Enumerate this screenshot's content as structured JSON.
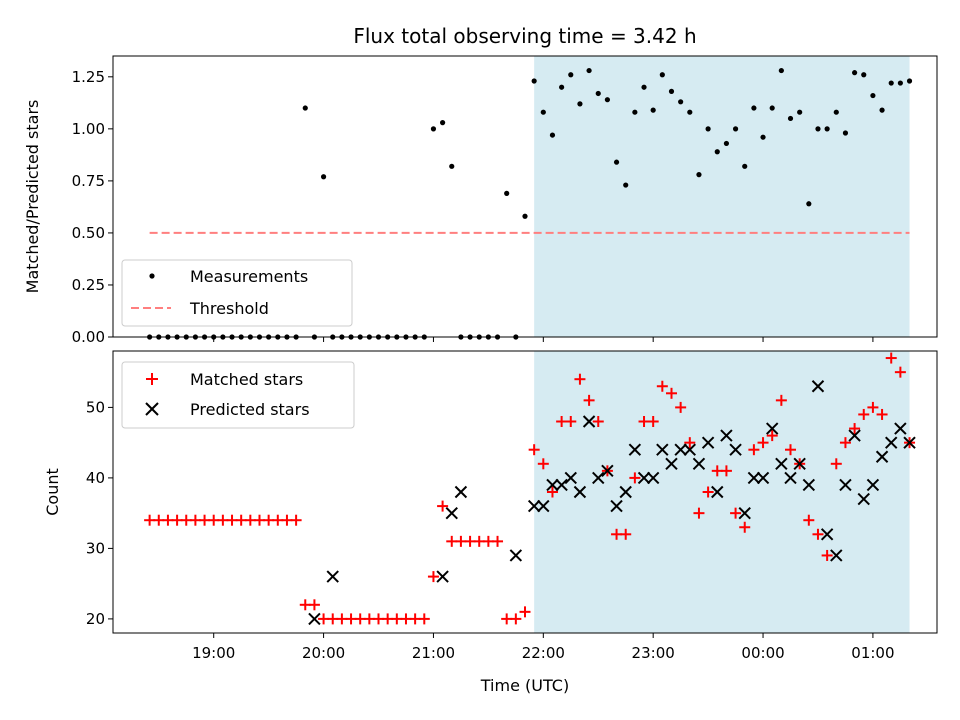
{
  "chart_data": [
    {
      "type": "scatter",
      "title": "Flux total observing time = 3.42 h",
      "xlabel": "",
      "ylabel": "Matched/Predicted stars",
      "ylim": [
        0,
        1.35
      ],
      "yticks": [
        "0.00",
        "0.25",
        "0.50",
        "0.75",
        "1.00",
        "1.25"
      ],
      "ytick_values": [
        0,
        0.25,
        0.5,
        0.75,
        1.0,
        1.25
      ],
      "legend": {
        "placement": "lower-left",
        "entries": [
          "Measurements",
          "Threshold"
        ]
      },
      "shaded_region": {
        "start": "21:55",
        "end": "01:20",
        "color": "#add8e6"
      },
      "threshold": {
        "value": 0.5,
        "from": "18:25",
        "to": "01:20",
        "color": "#ff7f7f"
      },
      "series": [
        {
          "name": "Measurements",
          "color": "#000000",
          "x": [
            "18:25",
            "18:30",
            "18:35",
            "18:40",
            "18:45",
            "18:50",
            "18:55",
            "19:00",
            "19:05",
            "19:10",
            "19:15",
            "19:20",
            "19:25",
            "19:30",
            "19:35",
            "19:40",
            "19:45",
            "19:50",
            "19:55",
            "20:00",
            "20:05",
            "20:10",
            "20:15",
            "20:20",
            "20:25",
            "20:30",
            "20:35",
            "20:40",
            "20:45",
            "20:50",
            "20:55",
            "21:00",
            "21:05",
            "21:10",
            "21:15",
            "21:20",
            "21:25",
            "21:30",
            "21:35",
            "21:40",
            "21:45",
            "21:50",
            "21:55",
            "22:00",
            "22:05",
            "22:10",
            "22:15",
            "22:20",
            "22:25",
            "22:30",
            "22:35",
            "22:40",
            "22:45",
            "22:50",
            "22:55",
            "23:00",
            "23:05",
            "23:10",
            "23:15",
            "23:20",
            "23:25",
            "23:30",
            "23:35",
            "23:40",
            "23:45",
            "23:50",
            "23:55",
            "00:00",
            "00:05",
            "00:10",
            "00:15",
            "00:20",
            "00:25",
            "00:30",
            "00:35",
            "00:40",
            "00:45",
            "00:50",
            "00:55",
            "01:00",
            "01:05",
            "01:10",
            "01:15",
            "01:20"
          ],
          "y": [
            0,
            0,
            0,
            0,
            0,
            0,
            0,
            0,
            0,
            0,
            0,
            0,
            0,
            0,
            0,
            0,
            0,
            1.1,
            0,
            0.77,
            0,
            0,
            0,
            0,
            0,
            0,
            0,
            0,
            0,
            0,
            0,
            1.0,
            1.03,
            0.82,
            0,
            0,
            0,
            0,
            0,
            0.69,
            0,
            0.58,
            1.23,
            1.08,
            0.97,
            1.2,
            1.26,
            1.12,
            1.28,
            1.17,
            1.14,
            0.84,
            0.73,
            1.08,
            1.2,
            1.09,
            1.26,
            1.18,
            1.13,
            1.08,
            0.78,
            1.0,
            0.89,
            0.93,
            1.0,
            0.82,
            1.1,
            0.96,
            1.1,
            1.28,
            1.05,
            1.08,
            0.64,
            1.0,
            1.0,
            1.08,
            0.98,
            1.27,
            1.26,
            1.16,
            1.09,
            1.22,
            1.22,
            1.23
          ]
        }
      ]
    },
    {
      "type": "scatter",
      "title": "",
      "xlabel": "Time (UTC)",
      "ylabel": "Count",
      "ylim": [
        18,
        58
      ],
      "yticks": [
        "20",
        "30",
        "40",
        "50"
      ],
      "ytick_values": [
        20,
        30,
        40,
        50
      ],
      "xlim": [
        "18:05",
        "01:35"
      ],
      "xticks": [
        "19:00",
        "20:00",
        "21:00",
        "22:00",
        "23:00",
        "00:00",
        "01:00"
      ],
      "legend": {
        "placement": "top-left",
        "entries": [
          "Matched stars",
          "Predicted stars"
        ]
      },
      "series": [
        {
          "name": "Matched stars",
          "marker": "plus",
          "color": "#ff0000",
          "x": [
            "18:25",
            "18:30",
            "18:35",
            "18:40",
            "18:45",
            "18:50",
            "18:55",
            "19:00",
            "19:05",
            "19:10",
            "19:15",
            "19:20",
            "19:25",
            "19:30",
            "19:35",
            "19:40",
            "19:45",
            "19:50",
            "19:55",
            "20:00",
            "20:05",
            "20:10",
            "20:15",
            "20:20",
            "20:25",
            "20:30",
            "20:35",
            "20:40",
            "20:45",
            "20:50",
            "20:55",
            "21:00",
            "21:05",
            "21:10",
            "21:15",
            "21:20",
            "21:25",
            "21:30",
            "21:35",
            "21:40",
            "21:45",
            "21:50",
            "21:55",
            "22:00",
            "22:05",
            "22:10",
            "22:15",
            "22:20",
            "22:25",
            "22:30",
            "22:35",
            "22:40",
            "22:45",
            "22:50",
            "22:55",
            "23:00",
            "23:05",
            "23:10",
            "23:15",
            "23:20",
            "23:25",
            "23:30",
            "23:35",
            "23:40",
            "23:45",
            "23:50",
            "23:55",
            "00:00",
            "00:05",
            "00:10",
            "00:15",
            "00:20",
            "00:25",
            "00:30",
            "00:35",
            "00:40",
            "00:45",
            "00:50",
            "00:55",
            "01:00",
            "01:05",
            "01:10",
            "01:15",
            "01:20"
          ],
          "y": [
            34,
            34,
            34,
            34,
            34,
            34,
            34,
            34,
            34,
            34,
            34,
            34,
            34,
            34,
            34,
            34,
            34,
            22,
            22,
            20,
            20,
            20,
            20,
            20,
            20,
            20,
            20,
            20,
            20,
            20,
            20,
            26,
            36,
            31,
            31,
            31,
            31,
            31,
            31,
            20,
            20,
            21,
            44,
            42,
            38,
            48,
            48,
            54,
            51,
            48,
            41,
            32,
            32,
            40,
            48,
            48,
            53,
            52,
            50,
            45,
            35,
            38,
            41,
            41,
            35,
            33,
            44,
            45,
            46,
            51,
            44,
            42,
            34,
            32,
            29,
            42,
            45,
            47,
            49,
            50,
            49,
            57,
            55,
            45
          ]
        },
        {
          "name": "Predicted stars",
          "marker": "x",
          "color": "#000000",
          "x": [
            "19:55",
            "20:05",
            "21:05",
            "21:10",
            "21:15",
            "21:45",
            "21:55",
            "22:00",
            "22:05",
            "22:10",
            "22:15",
            "22:20",
            "22:25",
            "22:30",
            "22:35",
            "22:40",
            "22:45",
            "22:50",
            "22:55",
            "23:00",
            "23:05",
            "23:10",
            "23:15",
            "23:20",
            "23:25",
            "23:30",
            "23:35",
            "23:40",
            "23:45",
            "23:50",
            "23:55",
            "00:00",
            "00:05",
            "00:10",
            "00:15",
            "00:20",
            "00:25",
            "00:30",
            "00:35",
            "00:40",
            "00:45",
            "00:50",
            "00:55",
            "01:00",
            "01:05",
            "01:10",
            "01:15",
            "01:20"
          ],
          "y": [
            20,
            26,
            26,
            35,
            38,
            29,
            36,
            36,
            39,
            39,
            40,
            38,
            48,
            40,
            41,
            36,
            38,
            44,
            40,
            40,
            44,
            42,
            44,
            44,
            42,
            45,
            38,
            46,
            44,
            35,
            40,
            40,
            47,
            42,
            40,
            42,
            39,
            53,
            32,
            29,
            39,
            46,
            37,
            39,
            43,
            45,
            47,
            45
          ]
        }
      ]
    }
  ]
}
